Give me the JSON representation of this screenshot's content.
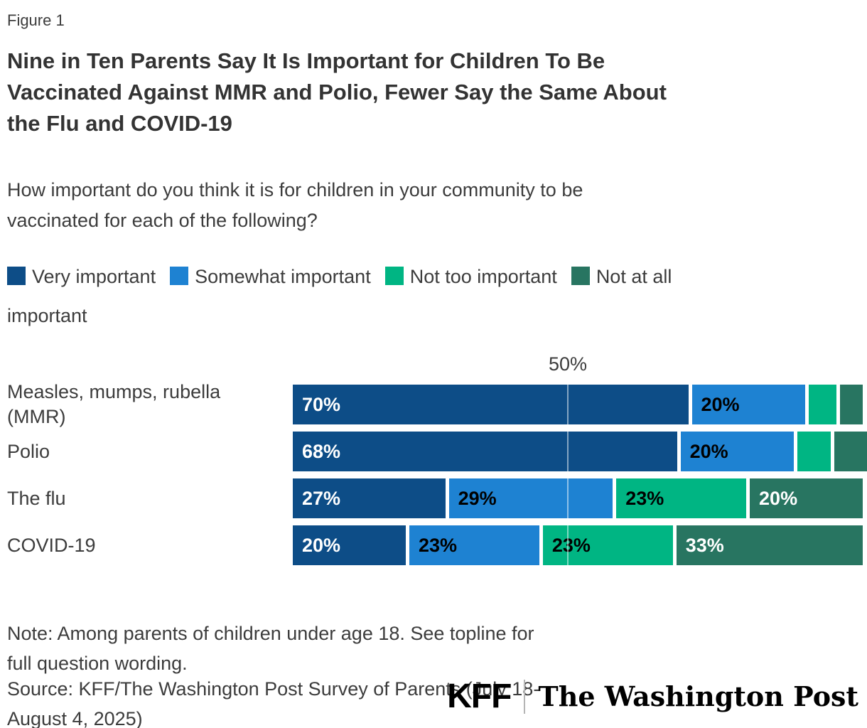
{
  "figure_label": "Figure 1",
  "title": "Nine in Ten Parents Say It Is Important for Children To Be Vaccinated Against MMR and Polio, Fewer Say the Same About the Flu and COVID-19",
  "title_lines": [
    "Nine in Ten Parents Say It Is Important for Children To Be",
    "Vaccinated Against MMR and Polio, Fewer Say the Same About",
    "the Flu and COVID-19"
  ],
  "subtitle": "How important do you think it is for children in your community to be vaccinated for each of the following?",
  "subtitle_lines": [
    "How important do you think it is for children in your community to be",
    "vaccinated for each of the following?"
  ],
  "legend": [
    {
      "label": "Very important",
      "color": "#0D4D87"
    },
    {
      "label": "Somewhat important",
      "color": "#1E82D2"
    },
    {
      "label": "Not too important",
      "color": "#00B583"
    },
    {
      "label": "Not at all important",
      "color": "#287561",
      "label_wrap": [
        "Not at all",
        "important"
      ]
    }
  ],
  "chart_data": {
    "type": "bar",
    "orientation": "horizontal-stacked",
    "axis_marker": "50%",
    "xlim": [
      0,
      100
    ],
    "grid": "single vertical line at 50%",
    "value_label_threshold": 10,
    "categories": [
      "Measles, mumps, rubella (MMR)",
      "Polio",
      "The flu",
      "COVID-19"
    ],
    "series": [
      {
        "name": "Very important",
        "color": "#0D4D87",
        "label_color": "#ffffff",
        "values": [
          70,
          68,
          27,
          20
        ]
      },
      {
        "name": "Somewhat important",
        "color": "#1E82D2",
        "label_color": "#000000",
        "values": [
          20,
          20,
          29,
          23
        ]
      },
      {
        "name": "Not too important",
        "color": "#00B583",
        "label_color": "#000000",
        "values": [
          5,
          6,
          23,
          23
        ]
      },
      {
        "name": "Not at all important",
        "color": "#287561",
        "label_color": "#ffffff",
        "values": [
          4,
          6,
          20,
          33
        ]
      }
    ]
  },
  "note": "Note: Among parents of children under age 18. See topline for full question wording.",
  "note_lines": [
    "Note: Among parents of children under age 18. See topline for",
    "full question wording."
  ],
  "source": "Source: KFF/The Washington Post Survey of Parents (July 18-August 4, 2025)",
  "source_lines": [
    "Source: KFF/The Washington Post Survey of Parents (July 18-",
    "August 4, 2025)"
  ],
  "logos": {
    "kff": "KFF",
    "wapo": "The Washington Post"
  },
  "colors": {
    "background": "#ffffff",
    "title_text": "#333333",
    "body_text": "#3c3c3c",
    "very_important": "#0D4D87",
    "somewhat_important": "#1E82D2",
    "not_too_important": "#00B583",
    "not_at_all_important": "#287561"
  }
}
